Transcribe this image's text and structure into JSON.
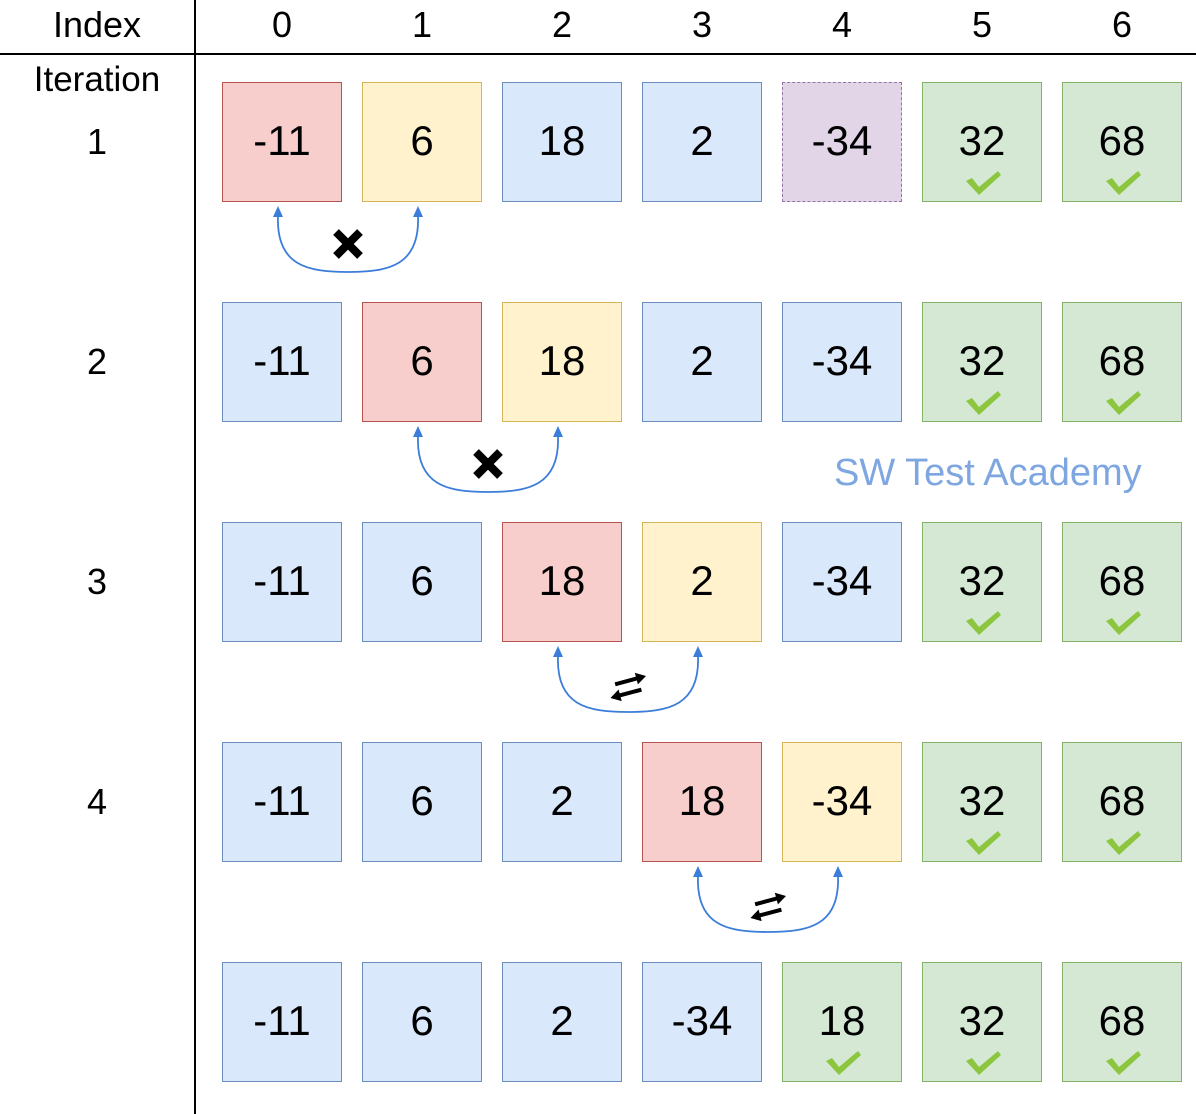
{
  "header": {
    "index_label": "Index",
    "indices": [
      "0",
      "1",
      "2",
      "3",
      "4",
      "5",
      "6"
    ]
  },
  "iteration_label": "Iteration",
  "rows": [
    {
      "iteration": "1",
      "cells": [
        {
          "value": "-11",
          "state": "red"
        },
        {
          "value": "6",
          "state": "yellow"
        },
        {
          "value": "18",
          "state": "blue"
        },
        {
          "value": "2",
          "state": "blue"
        },
        {
          "value": "-34",
          "state": "purple"
        },
        {
          "value": "32",
          "state": "green",
          "check": true
        },
        {
          "value": "68",
          "state": "green",
          "check": true
        }
      ],
      "compare": {
        "from": 0,
        "to": 1,
        "result": "no-swap"
      }
    },
    {
      "iteration": "2",
      "cells": [
        {
          "value": "-11",
          "state": "blue"
        },
        {
          "value": "6",
          "state": "red"
        },
        {
          "value": "18",
          "state": "yellow"
        },
        {
          "value": "2",
          "state": "blue"
        },
        {
          "value": "-34",
          "state": "blue"
        },
        {
          "value": "32",
          "state": "green",
          "check": true
        },
        {
          "value": "68",
          "state": "green",
          "check": true
        }
      ],
      "compare": {
        "from": 1,
        "to": 2,
        "result": "no-swap"
      }
    },
    {
      "iteration": "3",
      "cells": [
        {
          "value": "-11",
          "state": "blue"
        },
        {
          "value": "6",
          "state": "blue"
        },
        {
          "value": "18",
          "state": "red"
        },
        {
          "value": "2",
          "state": "yellow"
        },
        {
          "value": "-34",
          "state": "blue"
        },
        {
          "value": "32",
          "state": "green",
          "check": true
        },
        {
          "value": "68",
          "state": "green",
          "check": true
        }
      ],
      "compare": {
        "from": 2,
        "to": 3,
        "result": "swap"
      }
    },
    {
      "iteration": "4",
      "cells": [
        {
          "value": "-11",
          "state": "blue"
        },
        {
          "value": "6",
          "state": "blue"
        },
        {
          "value": "2",
          "state": "blue"
        },
        {
          "value": "18",
          "state": "red"
        },
        {
          "value": "-34",
          "state": "yellow"
        },
        {
          "value": "32",
          "state": "green",
          "check": true
        },
        {
          "value": "68",
          "state": "green",
          "check": true
        }
      ],
      "compare": {
        "from": 3,
        "to": 4,
        "result": "swap"
      }
    },
    {
      "iteration": "",
      "cells": [
        {
          "value": "-11",
          "state": "blue"
        },
        {
          "value": "6",
          "state": "blue"
        },
        {
          "value": "2",
          "state": "blue"
        },
        {
          "value": "-34",
          "state": "blue"
        },
        {
          "value": "18",
          "state": "green",
          "check": true
        },
        {
          "value": "32",
          "state": "green",
          "check": true
        },
        {
          "value": "68",
          "state": "green",
          "check": true
        }
      ],
      "compare": null
    }
  ],
  "watermark": "SW Test Academy",
  "colors": {
    "default_fill": "#dae8fc",
    "current_fill": "#f8cecc",
    "next_fill": "#fff2cc",
    "sorted_fill": "#d5e8d4",
    "unvisited_fill": "#e1d5e7",
    "arc": "#3b7dd8",
    "check": "#8cc63f",
    "watermark": "#7ea6e0"
  }
}
